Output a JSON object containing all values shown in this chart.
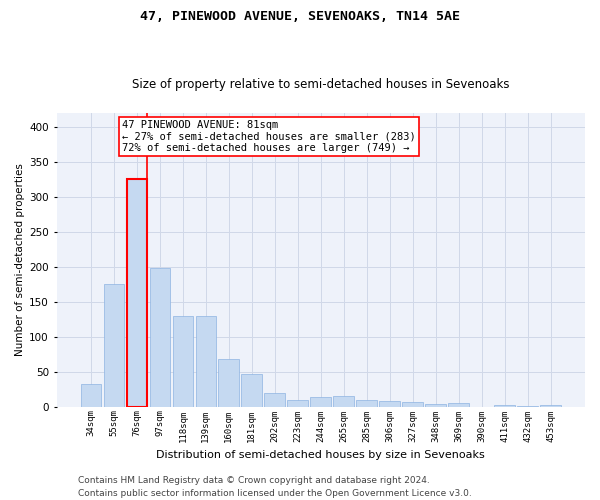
{
  "title_line1": "47, PINEWOOD AVENUE, SEVENOAKS, TN14 5AE",
  "title_line2": "Size of property relative to semi-detached houses in Sevenoaks",
  "xlabel": "Distribution of semi-detached houses by size in Sevenoaks",
  "ylabel": "Number of semi-detached properties",
  "footer_line1": "Contains HM Land Registry data © Crown copyright and database right 2024.",
  "footer_line2": "Contains public sector information licensed under the Open Government Licence v3.0.",
  "annotation_line1": "47 PINEWOOD AVENUE: 81sqm",
  "annotation_line2": "← 27% of semi-detached houses are smaller (283)",
  "annotation_line3": "72% of semi-detached houses are larger (749) →",
  "bar_labels": [
    "34sqm",
    "55sqm",
    "76sqm",
    "97sqm",
    "118sqm",
    "139sqm",
    "160sqm",
    "181sqm",
    "202sqm",
    "223sqm",
    "244sqm",
    "265sqm",
    "285sqm",
    "306sqm",
    "327sqm",
    "348sqm",
    "369sqm",
    "390sqm",
    "411sqm",
    "432sqm",
    "453sqm"
  ],
  "bar_values": [
    32,
    176,
    325,
    199,
    130,
    130,
    68,
    47,
    20,
    10,
    14,
    15,
    9,
    8,
    6,
    4,
    5,
    0,
    2,
    1,
    2
  ],
  "bar_color": "#c5d9f1",
  "bar_edgecolor": "#8db4e2",
  "highlight_bar_index": 2,
  "highlight_bar_edgecolor": "#ff0000",
  "ylim": [
    0,
    420
  ],
  "yticks": [
    0,
    50,
    100,
    150,
    200,
    250,
    300,
    350,
    400
  ],
  "grid_color": "#d0d8e8",
  "background_color": "#eef2fa",
  "title_fontsize": 9.5,
  "subtitle_fontsize": 8.5,
  "annotation_fontsize": 7.5,
  "footer_fontsize": 6.5,
  "ylabel_fontsize": 7.5,
  "xlabel_fontsize": 8
}
